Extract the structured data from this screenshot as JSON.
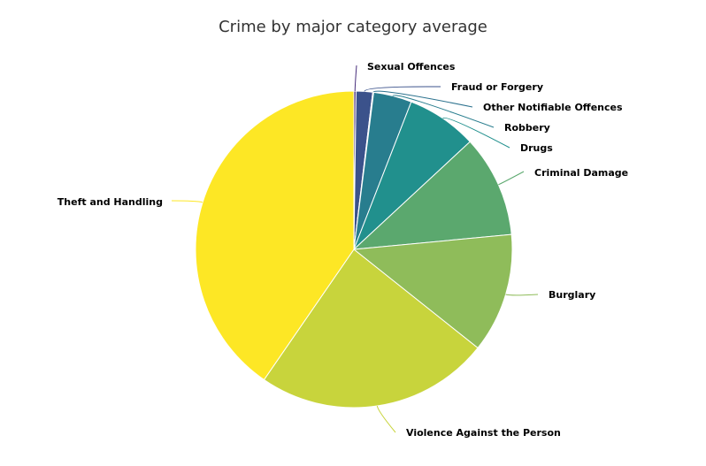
{
  "chart_data": {
    "type": "pie",
    "title": "Crime by major category average",
    "start_angle_deg": 0,
    "slices": [
      {
        "label": "Sexual Offences",
        "value": 0.22,
        "color": "#472d7b"
      },
      {
        "label": "Fraud or Forgery",
        "value": 1.68,
        "color": "#3b528b"
      },
      {
        "label": "Other Notifiable Offences",
        "value": 0.1,
        "color": "#2c728e"
      },
      {
        "label": "Robbery",
        "value": 3.9,
        "color": "#287d8e"
      },
      {
        "label": "Drugs",
        "value": 7.2,
        "color": "#21908d"
      },
      {
        "label": "Criminal Damage",
        "value": 10.4,
        "color": "#5ba86e"
      },
      {
        "label": "Burglary",
        "value": 12.2,
        "color": "#8fbc5a"
      },
      {
        "label": "Violence Against the Person",
        "value": 23.9,
        "color": "#c8d43c"
      },
      {
        "label": "Theft and Handling",
        "value": 40.4,
        "color": "#fde725"
      }
    ]
  }
}
